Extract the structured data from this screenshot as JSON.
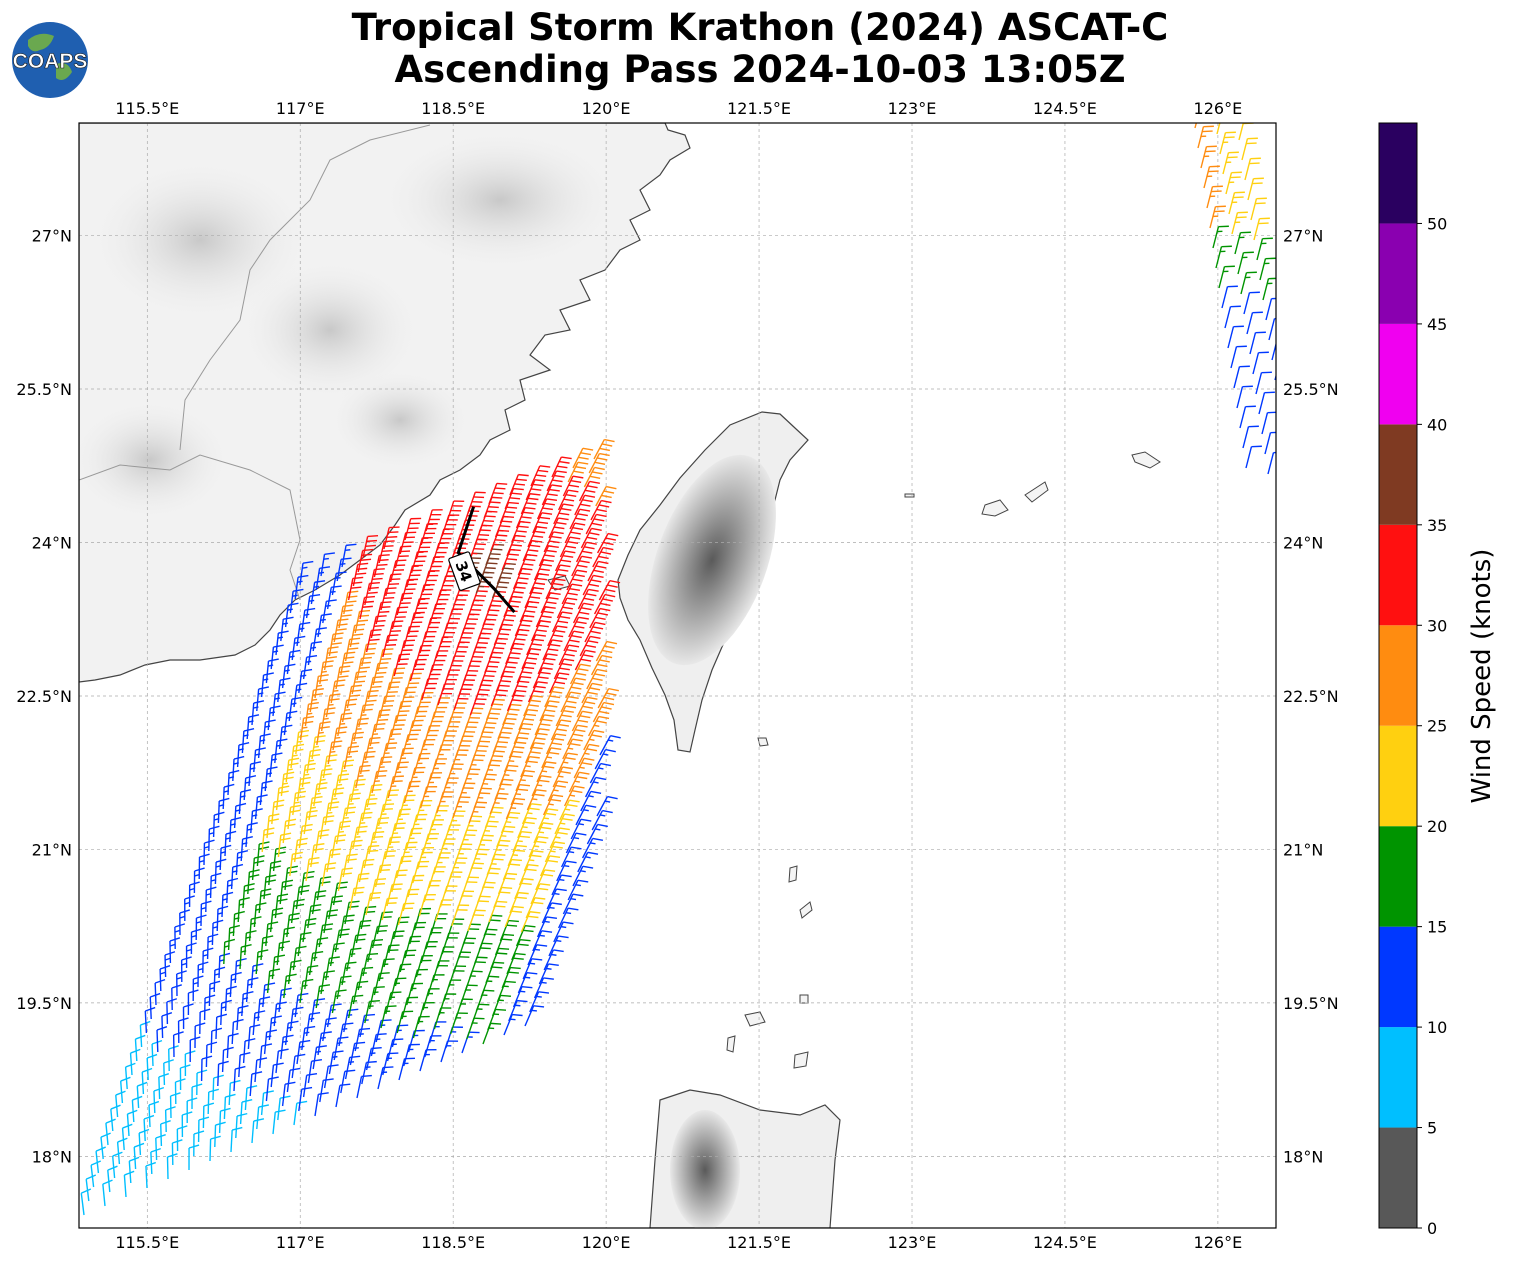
{
  "header": {
    "title_line1": "Tropical Storm Krathon (2024) ASCAT-C",
    "title_line2": "Ascending Pass 2024-10-03 13:05Z",
    "logo_text": "COAPS"
  },
  "map": {
    "lon_range": [
      114.83,
      126.57
    ],
    "lat_range": [
      17.3,
      28.1
    ],
    "lon_ticks": [
      "115.5°E",
      "117°E",
      "118.5°E",
      "120°E",
      "121.5°E",
      "123°E",
      "124.5°E",
      "126°E"
    ],
    "lon_tick_values": [
      115.5,
      117,
      118.5,
      120,
      121.5,
      123,
      124.5,
      126
    ],
    "lat_ticks": [
      "27°N",
      "25.5°N",
      "24°N",
      "22.5°N",
      "21°N",
      "19.5°N",
      "18°N"
    ],
    "lat_tick_values": [
      27,
      25.5,
      24,
      22.5,
      21,
      19.5,
      18
    ],
    "grid": true,
    "land_color": "#f4f4f4",
    "coast_color": "#444444",
    "storm_center_label": "34",
    "storm_track": [
      [
        118.7,
        24.35
      ],
      [
        118.55,
        23.9
      ],
      [
        118.9,
        23.55
      ],
      [
        119.1,
        23.32
      ]
    ]
  },
  "colorbar": {
    "label": "Wind Speed (knots)",
    "ticks": [
      "0",
      "5",
      "10",
      "15",
      "20",
      "25",
      "30",
      "35",
      "40",
      "45",
      "50"
    ],
    "bins": [
      {
        "min": 0,
        "max": 5,
        "color": "#585858"
      },
      {
        "min": 5,
        "max": 10,
        "color": "#00bfff"
      },
      {
        "min": 10,
        "max": 15,
        "color": "#0038ff"
      },
      {
        "min": 15,
        "max": 20,
        "color": "#009400"
      },
      {
        "min": 20,
        "max": 25,
        "color": "#ffd010"
      },
      {
        "min": 25,
        "max": 30,
        "color": "#ff8c10"
      },
      {
        "min": 30,
        "max": 35,
        "color": "#ff1010"
      },
      {
        "min": 35,
        "max": 40,
        "color": "#7f3a22"
      },
      {
        "min": 40,
        "max": 45,
        "color": "#f000f0"
      },
      {
        "min": 45,
        "max": 50,
        "color": "#8a00b0"
      },
      {
        "min": 50,
        "max": 55,
        "color": "#2a0060"
      }
    ]
  }
}
